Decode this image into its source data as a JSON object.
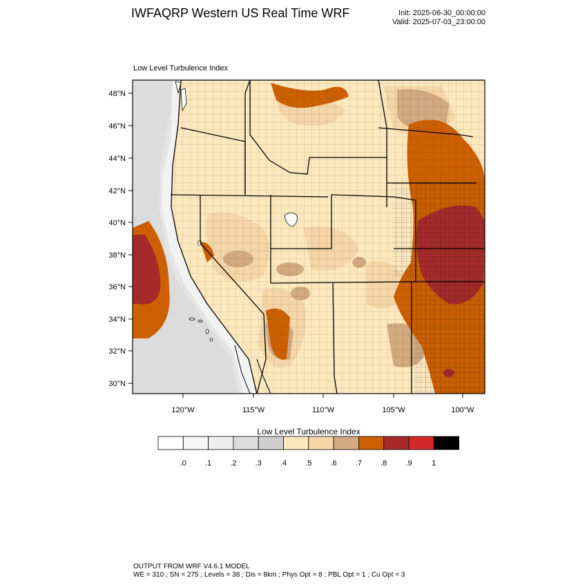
{
  "header": {
    "title": "IWFAQRP Western US Real Time WRF",
    "init": "Init: 2025-06-30_00:00:00",
    "valid": "Valid: 2025-07-03_23:00:00"
  },
  "map": {
    "field_title": "Low Level Turbulence Index",
    "lat_labels": [
      "48°N",
      "46°N",
      "44°N",
      "42°N",
      "40°N",
      "38°N",
      "36°N",
      "34°N",
      "32°N",
      "30°N"
    ],
    "lon_labels": [
      "120°W",
      "115°W",
      "110°W",
      "105°W",
      "100°W"
    ]
  },
  "colorbar": {
    "title": "Low Level Turbulence Index",
    "labels": [
      ".0",
      ".1",
      ".2",
      ".3",
      ".4",
      ".5",
      ".6",
      ".7",
      ".8",
      ".9",
      "1"
    ],
    "colors": [
      "#ffffff",
      "#f6f6f6",
      "#eeeeee",
      "#dcdcdc",
      "#cfcfcf",
      "#fde8be",
      "#f4d6a8",
      "#d2aa80",
      "#cc6000",
      "#a62a2a",
      "#d42828",
      "#000000"
    ]
  },
  "footer": {
    "line1": "OUTPUT FROM WRF V4.6.1 MODEL",
    "line2": "WE = 310 ; SN = 275 ; Levels = 38 ; Dis = 8km ; Phys Opt = 8 ; PBL Opt = 1 ; Cu Opt = 3"
  }
}
